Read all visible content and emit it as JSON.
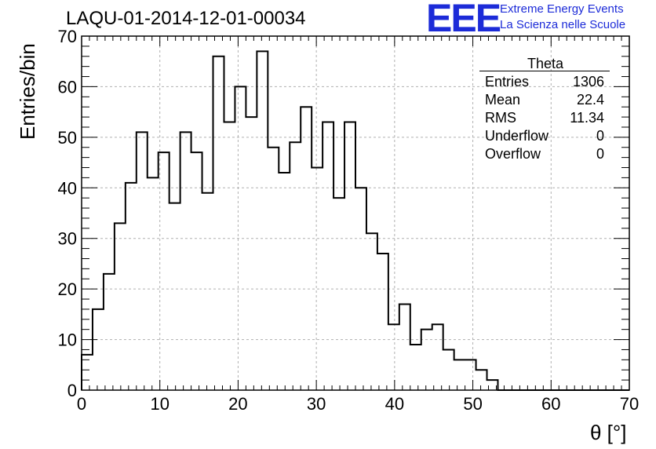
{
  "title": "LAQU-01-2014-12-01-00034",
  "logo": {
    "mark": "EEE",
    "line1": "Extreme Energy Events",
    "line2": "La Scienza nelle Scuole",
    "color": "#1c2bd8"
  },
  "stats": {
    "title": "Theta",
    "rows": [
      {
        "key": "Entries",
        "value": "1306"
      },
      {
        "key": "Mean",
        "value": "22.4"
      },
      {
        "key": "RMS",
        "value": "11.34"
      },
      {
        "key": "Underflow",
        "value": "0"
      },
      {
        "key": "Overflow",
        "value": "0"
      }
    ]
  },
  "chart_data": {
    "type": "histogram",
    "title": "LAQU-01-2014-12-01-00034",
    "xlabel": "θ [°]",
    "ylabel": "Entries/bin",
    "xlim": [
      0,
      70
    ],
    "ylim": [
      0,
      70
    ],
    "bin_width": 1.4,
    "x_ticks": [
      0,
      10,
      20,
      30,
      40,
      50,
      60,
      70
    ],
    "y_ticks": [
      0,
      10,
      20,
      30,
      40,
      50,
      60,
      70
    ],
    "grid": true,
    "values": [
      7,
      16,
      23,
      33,
      41,
      51,
      42,
      47,
      37,
      51,
      47,
      39,
      66,
      53,
      60,
      54,
      67,
      48,
      43,
      49,
      56,
      44,
      53,
      38,
      53,
      40,
      31,
      27,
      13,
      17,
      9,
      12,
      13,
      8,
      6,
      6,
      4,
      2,
      0,
      0,
      0,
      0,
      0,
      0,
      0,
      0,
      0,
      0,
      0,
      0
    ]
  }
}
